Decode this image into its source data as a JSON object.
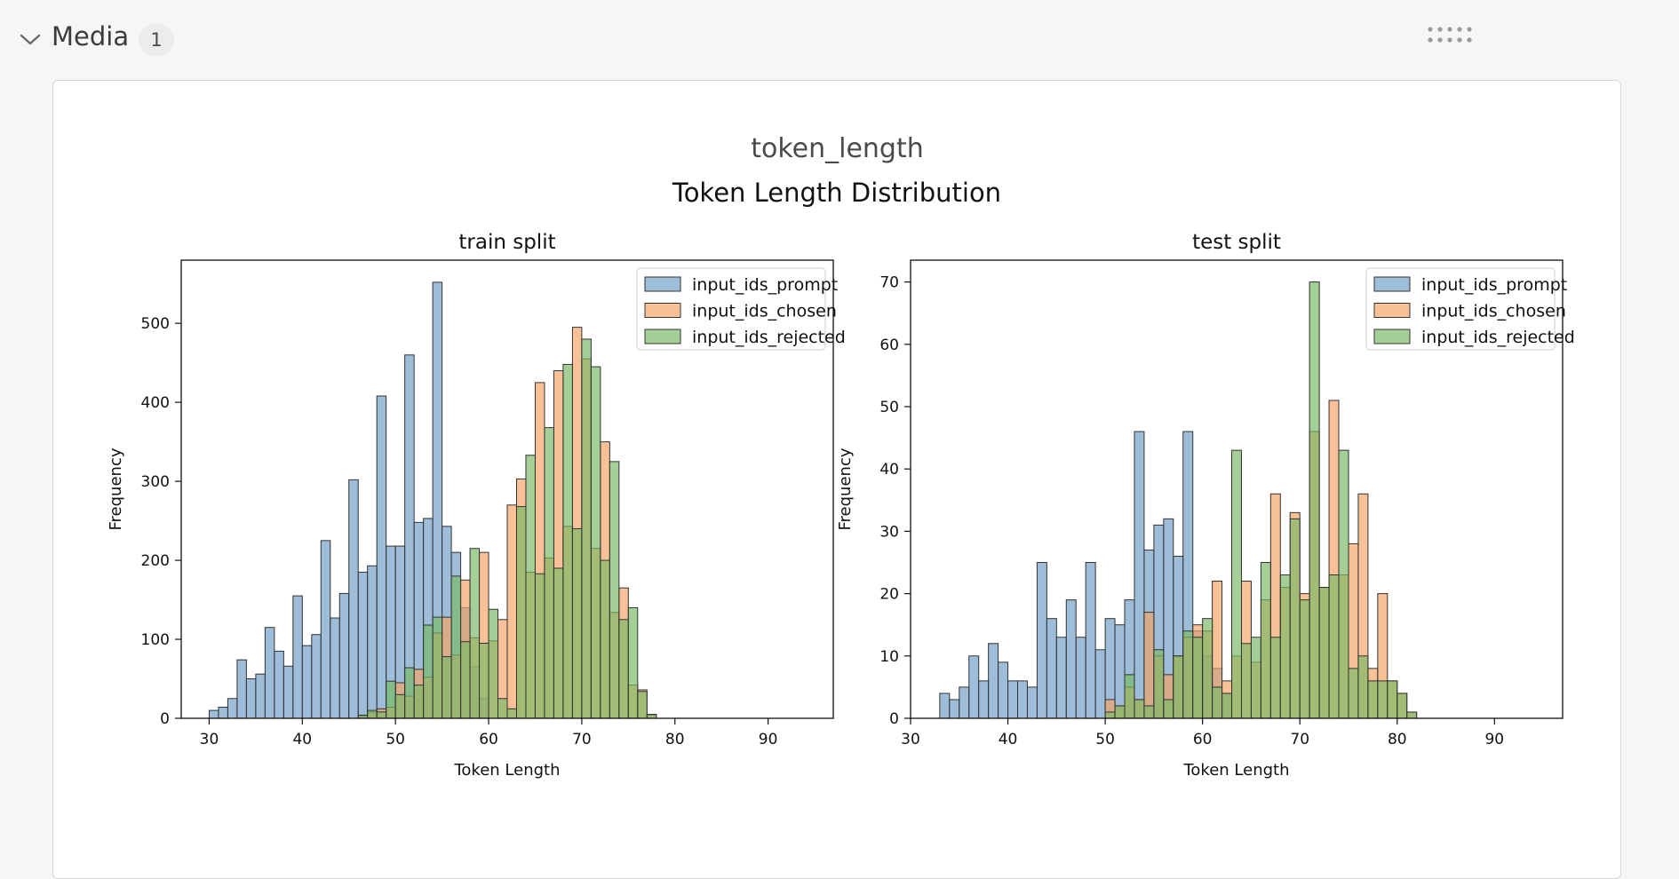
{
  "section": {
    "title": "Media",
    "count": "1"
  },
  "panel": {
    "title": "token_length"
  },
  "colors": {
    "prompt": "#6f9dc6",
    "chosen": "#f5a366",
    "rejected": "#79b966",
    "edge": "#333333"
  },
  "chart_data": {
    "suptitle": "Token Length Distribution",
    "legend_placement": "upper right",
    "charts": [
      {
        "type": "bar",
        "title": "train split",
        "xlabel": "Token Length",
        "ylabel": "Frequency",
        "xlim": [
          27,
          97
        ],
        "ylim": [
          0,
          580
        ],
        "xticks": [
          30,
          40,
          50,
          60,
          70,
          80,
          90
        ],
        "yticks": [
          0,
          100,
          200,
          300,
          400,
          500
        ],
        "series": [
          {
            "name": "input_ids_prompt",
            "color": "prompt",
            "bins": [
              [
                30,
                31,
                10
              ],
              [
                31,
                32,
                14
              ],
              [
                32,
                33,
                25
              ],
              [
                33,
                34,
                74
              ],
              [
                34,
                35,
                50
              ],
              [
                35,
                36,
                56
              ],
              [
                36,
                37,
                115
              ],
              [
                37,
                38,
                85
              ],
              [
                38,
                39,
                66
              ],
              [
                39,
                40,
                155
              ],
              [
                40,
                41,
                92
              ],
              [
                41,
                42,
                106
              ],
              [
                42,
                43,
                225
              ],
              [
                43,
                44,
                127
              ],
              [
                44,
                45,
                158
              ],
              [
                45,
                46,
                302
              ],
              [
                46,
                47,
                185
              ],
              [
                47,
                48,
                193
              ],
              [
                48,
                49,
                408
              ],
              [
                49,
                50,
                218
              ],
              [
                50,
                51,
                218
              ],
              [
                51,
                52,
                460
              ],
              [
                52,
                53,
                248
              ],
              [
                53,
                54,
                253
              ],
              [
                54,
                55,
                552
              ],
              [
                55,
                56,
                243
              ],
              [
                56,
                57,
                210
              ],
              [
                57,
                58,
                140
              ],
              [
                58,
                59,
                65
              ],
              [
                59,
                60,
                25
              ]
            ]
          },
          {
            "name": "input_ids_chosen",
            "color": "chosen",
            "bins": [
              [
                46,
                47,
                3
              ],
              [
                47,
                48,
                8
              ],
              [
                48,
                49,
                12
              ],
              [
                49,
                50,
                14
              ],
              [
                50,
                51,
                45
              ],
              [
                51,
                52,
                28
              ],
              [
                52,
                53,
                62
              ],
              [
                53,
                54,
                52
              ],
              [
                54,
                55,
                108
              ],
              [
                55,
                56,
                128
              ],
              [
                56,
                57,
                80
              ],
              [
                57,
                58,
                175
              ],
              [
                58,
                59,
                102
              ],
              [
                59,
                60,
                210
              ],
              [
                60,
                61,
                98
              ],
              [
                61,
                62,
                125
              ],
              [
                62,
                63,
                270
              ],
              [
                63,
                64,
                303
              ],
              [
                64,
                65,
                185
              ],
              [
                65,
                66,
                425
              ],
              [
                66,
                67,
                203
              ],
              [
                67,
                68,
                440
              ],
              [
                68,
                69,
                243
              ],
              [
                69,
                70,
                495
              ],
              [
                70,
                71,
                455
              ],
              [
                71,
                72,
                215
              ],
              [
                72,
                73,
                350
              ],
              [
                73,
                74,
                134
              ],
              [
                74,
                75,
                165
              ],
              [
                75,
                76,
                42
              ],
              [
                76,
                77,
                36
              ],
              [
                77,
                78,
                4
              ]
            ]
          },
          {
            "name": "input_ids_rejected",
            "color": "rejected",
            "bins": [
              [
                46,
                47,
                4
              ],
              [
                47,
                48,
                10
              ],
              [
                48,
                49,
                8
              ],
              [
                49,
                50,
                47
              ],
              [
                50,
                51,
                30
              ],
              [
                51,
                52,
                64
              ],
              [
                52,
                53,
                42
              ],
              [
                53,
                54,
                118
              ],
              [
                54,
                55,
                128
              ],
              [
                55,
                56,
                78
              ],
              [
                56,
                57,
                180
              ],
              [
                57,
                58,
                97
              ],
              [
                58,
                59,
                215
              ],
              [
                59,
                60,
                95
              ],
              [
                60,
                61,
                138
              ],
              [
                61,
                62,
                25
              ],
              [
                62,
                63,
                12
              ],
              [
                63,
                64,
                268
              ],
              [
                64,
                65,
                333
              ],
              [
                65,
                66,
                183
              ],
              [
                66,
                67,
                368
              ],
              [
                67,
                68,
                190
              ],
              [
                68,
                69,
                448
              ],
              [
                69,
                70,
                240
              ],
              [
                70,
                71,
                480
              ],
              [
                71,
                72,
                445
              ],
              [
                72,
                73,
                200
              ],
              [
                73,
                74,
                325
              ],
              [
                74,
                75,
                125
              ],
              [
                75,
                76,
                140
              ],
              [
                76,
                77,
                34
              ],
              [
                77,
                78,
                5
              ]
            ]
          }
        ]
      },
      {
        "type": "bar",
        "title": "test split",
        "xlabel": "Token Length",
        "ylabel": "Frequency",
        "xlim": [
          30,
          97
        ],
        "ylim": [
          0,
          73.5
        ],
        "xticks": [
          30,
          40,
          50,
          60,
          70,
          80,
          90
        ],
        "yticks": [
          0,
          10,
          20,
          30,
          40,
          50,
          60,
          70
        ],
        "series": [
          {
            "name": "input_ids_prompt",
            "color": "prompt",
            "bins": [
              [
                33,
                34,
                4
              ],
              [
                34,
                35,
                3
              ],
              [
                35,
                36,
                5
              ],
              [
                36,
                37,
                10
              ],
              [
                37,
                38,
                6
              ],
              [
                38,
                39,
                12
              ],
              [
                39,
                40,
                9
              ],
              [
                40,
                41,
                6
              ],
              [
                41,
                42,
                6
              ],
              [
                42,
                43,
                5
              ],
              [
                43,
                44,
                25
              ],
              [
                44,
                45,
                16
              ],
              [
                45,
                46,
                13
              ],
              [
                46,
                47,
                19
              ],
              [
                47,
                48,
                13
              ],
              [
                48,
                49,
                25
              ],
              [
                49,
                50,
                11
              ],
              [
                50,
                51,
                16
              ],
              [
                51,
                52,
                15
              ],
              [
                52,
                53,
                19
              ],
              [
                53,
                54,
                46
              ],
              [
                54,
                55,
                27
              ],
              [
                55,
                56,
                31
              ],
              [
                56,
                57,
                32
              ],
              [
                57,
                58,
                26
              ],
              [
                58,
                59,
                46
              ],
              [
                59,
                60,
                14
              ],
              [
                60,
                61,
                10
              ],
              [
                61,
                62,
                8
              ],
              [
                62,
                63,
                4
              ]
            ]
          },
          {
            "name": "input_ids_chosen",
            "color": "chosen",
            "bins": [
              [
                50,
                51,
                3
              ],
              [
                51,
                52,
                2
              ],
              [
                52,
                53,
                5
              ],
              [
                53,
                54,
                3
              ],
              [
                54,
                55,
                17
              ],
              [
                55,
                56,
                10
              ],
              [
                56,
                57,
                7
              ],
              [
                57,
                58,
                10
              ],
              [
                58,
                59,
                13
              ],
              [
                59,
                60,
                15
              ],
              [
                60,
                61,
                14
              ],
              [
                61,
                62,
                22
              ],
              [
                62,
                63,
                6
              ],
              [
                63,
                64,
                10
              ],
              [
                64,
                65,
                22
              ],
              [
                65,
                66,
                9
              ],
              [
                66,
                67,
                19
              ],
              [
                67,
                68,
                36
              ],
              [
                68,
                69,
                21
              ],
              [
                69,
                70,
                33
              ],
              [
                70,
                71,
                20
              ],
              [
                71,
                72,
                46
              ],
              [
                72,
                73,
                21
              ],
              [
                73,
                74,
                51
              ],
              [
                74,
                75,
                23
              ],
              [
                75,
                76,
                28
              ],
              [
                76,
                77,
                36
              ],
              [
                77,
                78,
                8
              ],
              [
                78,
                79,
                20
              ],
              [
                79,
                80,
                6
              ],
              [
                80,
                81,
                4
              ],
              [
                81,
                82,
                1
              ]
            ]
          },
          {
            "name": "input_ids_rejected",
            "color": "rejected",
            "bins": [
              [
                50,
                51,
                1
              ],
              [
                51,
                52,
                2
              ],
              [
                52,
                53,
                7
              ],
              [
                53,
                54,
                3
              ],
              [
                54,
                55,
                2
              ],
              [
                55,
                56,
                11
              ],
              [
                56,
                57,
                3
              ],
              [
                57,
                58,
                10
              ],
              [
                58,
                59,
                14
              ],
              [
                59,
                60,
                13
              ],
              [
                60,
                61,
                16
              ],
              [
                61,
                62,
                5
              ],
              [
                62,
                63,
                4
              ],
              [
                63,
                64,
                43
              ],
              [
                64,
                65,
                12
              ],
              [
                65,
                66,
                13
              ],
              [
                66,
                67,
                25
              ],
              [
                67,
                68,
                13
              ],
              [
                68,
                69,
                23
              ],
              [
                69,
                70,
                32
              ],
              [
                70,
                71,
                19
              ],
              [
                71,
                72,
                70
              ],
              [
                72,
                73,
                21
              ],
              [
                73,
                74,
                23
              ],
              [
                74,
                75,
                43
              ],
              [
                75,
                76,
                8
              ],
              [
                76,
                77,
                10
              ],
              [
                77,
                78,
                6
              ],
              [
                78,
                79,
                6
              ],
              [
                79,
                80,
                6
              ],
              [
                80,
                81,
                4
              ],
              [
                81,
                82,
                1
              ]
            ]
          }
        ]
      }
    ]
  }
}
